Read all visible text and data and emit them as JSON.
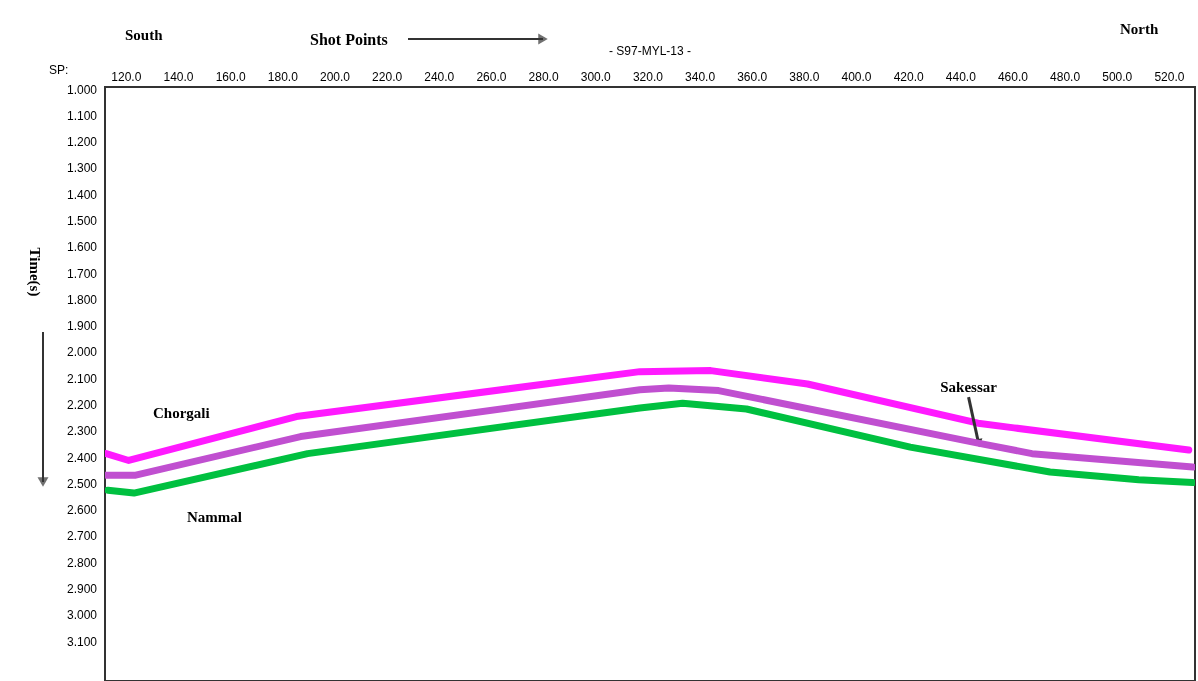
{
  "chart_data": {
    "type": "line",
    "title": "- S97-MYL-13 -",
    "xlabel": "Shot Points",
    "ylabel": "Time(s)",
    "annotations": [
      "South",
      "North",
      "SP:",
      "Chorgali",
      "Nammal",
      {
        "text": "Sakessar",
        "x": 447,
        "y": 2.345
      }
    ],
    "xlim": [
      112,
      530
    ],
    "ylim": [
      3.25,
      0.99
    ],
    "xticks": [
      {
        "value": 120,
        "label": "120.0"
      },
      {
        "value": 140,
        "label": "140.0"
      },
      {
        "value": 160,
        "label": "160.0"
      },
      {
        "value": 180,
        "label": "180.0"
      },
      {
        "value": 200,
        "label": "200.0"
      },
      {
        "value": 220,
        "label": "220.0"
      },
      {
        "value": 240,
        "label": "240.0"
      },
      {
        "value": 260,
        "label": "260.0"
      },
      {
        "value": 280,
        "label": "280.0"
      },
      {
        "value": 300,
        "label": "300.0"
      },
      {
        "value": 320,
        "label": "320.0"
      },
      {
        "value": 340,
        "label": "340.0"
      },
      {
        "value": 360,
        "label": "360.0"
      },
      {
        "value": 380,
        "label": "380.0"
      },
      {
        "value": 400,
        "label": "400.0"
      },
      {
        "value": 420,
        "label": "420.0"
      },
      {
        "value": 440,
        "label": "440.0"
      },
      {
        "value": 460,
        "label": "460.0"
      },
      {
        "value": 480,
        "label": "480.0"
      },
      {
        "value": 500,
        "label": "500.0"
      },
      {
        "value": 520,
        "label": "520.0"
      }
    ],
    "yticks": [
      {
        "value": 1.0,
        "label": "1.000"
      },
      {
        "value": 1.1,
        "label": "1.100"
      },
      {
        "value": 1.2,
        "label": "1.200"
      },
      {
        "value": 1.3,
        "label": "1.300"
      },
      {
        "value": 1.4,
        "label": "1.400"
      },
      {
        "value": 1.5,
        "label": "1.500"
      },
      {
        "value": 1.6,
        "label": "1.600"
      },
      {
        "value": 1.7,
        "label": "1.700"
      },
      {
        "value": 1.8,
        "label": "1.800"
      },
      {
        "value": 1.9,
        "label": "1.900"
      },
      {
        "value": 2.0,
        "label": "2.000"
      },
      {
        "value": 2.1,
        "label": "2.100"
      },
      {
        "value": 2.2,
        "label": "2.200"
      },
      {
        "value": 2.3,
        "label": "2.300"
      },
      {
        "value": 2.4,
        "label": "2.400"
      },
      {
        "value": 2.5,
        "label": "2.500"
      },
      {
        "value": 2.6,
        "label": "2.600"
      },
      {
        "value": 2.7,
        "label": "2.700"
      },
      {
        "value": 2.8,
        "label": "2.800"
      },
      {
        "value": 2.9,
        "label": "2.900"
      },
      {
        "value": 3.0,
        "label": "3.000"
      },
      {
        "value": 3.1,
        "label": "3.100"
      }
    ],
    "grid": false,
    "marker": "none",
    "line_style": "solid",
    "series": [
      {
        "color": "#ff1aff",
        "x": [
          112.5,
          121.1,
          185.4,
          317.1,
          344.3,
          381.4,
          446.8,
          460.6,
          527.6
        ],
        "values": [
          2.385,
          2.411,
          2.244,
          2.073,
          2.069,
          2.12,
          2.269,
          2.287,
          2.371
        ]
      },
      {
        "color": "#c04fd0",
        "x": [
          112.5,
          123.8,
          187.0,
          317.1,
          328.2,
          347.3,
          446.8,
          467.5,
          529.1
        ],
        "values": [
          2.467,
          2.467,
          2.32,
          2.142,
          2.135,
          2.145,
          2.345,
          2.385,
          2.436
        ]
      },
      {
        "color": "#00c040",
        "x": [
          113.1,
          123.1,
          189.7,
          317.1,
          333.5,
          358.0,
          420.8,
          474.4,
          508.4,
          529.1
        ],
        "values": [
          2.524,
          2.535,
          2.385,
          2.211,
          2.193,
          2.215,
          2.36,
          2.455,
          2.484,
          2.495
        ]
      }
    ]
  }
}
